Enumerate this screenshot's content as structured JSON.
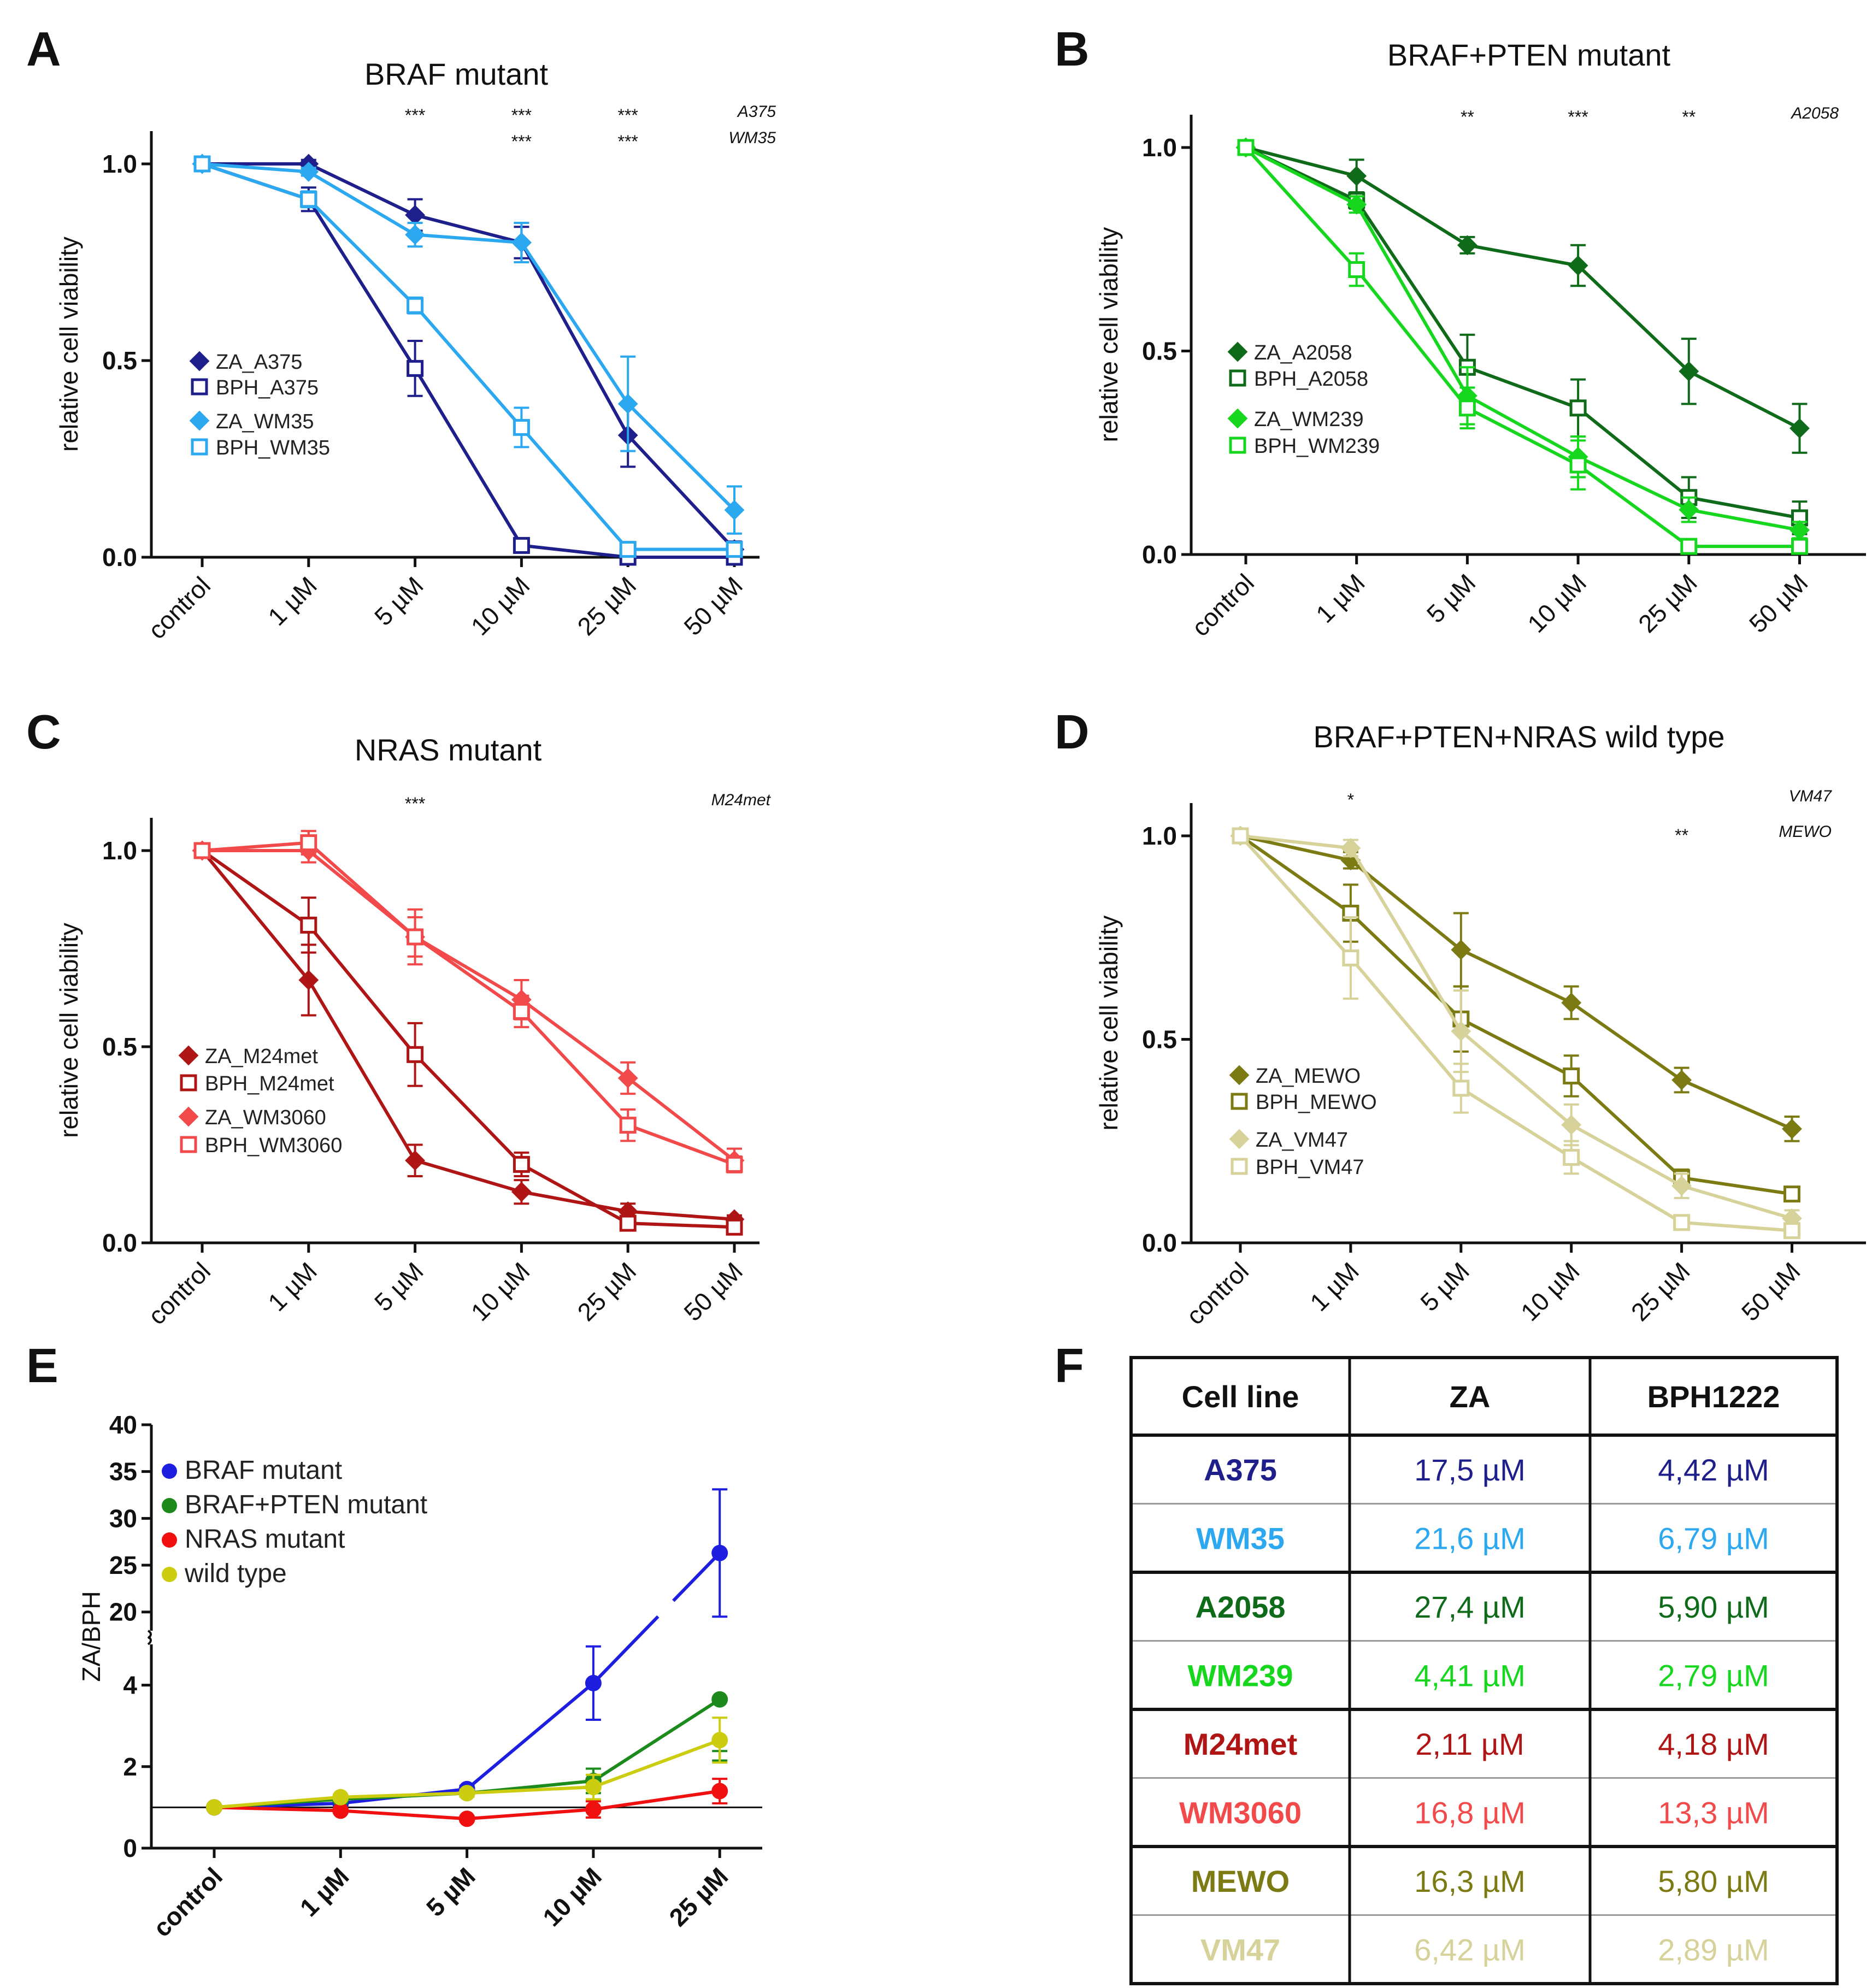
{
  "figure": {
    "panel_letters": [
      "A",
      "B",
      "C",
      "D",
      "E",
      "F"
    ]
  },
  "chart_data": [
    {
      "panel": "A",
      "type": "line",
      "title": "BRAF mutant",
      "ylabel": "relative cell viability",
      "xlabel": "",
      "categories": [
        "control",
        "1 µM",
        "5 µM",
        "10 µM",
        "25 µM",
        "50 µM"
      ],
      "yticks": [
        "0.0",
        "0.5",
        "1.0"
      ],
      "ylim": [
        0,
        1.1
      ],
      "series": [
        {
          "name": "ZA_A375",
          "color": "#1f1f8c",
          "marker": "filled-diamond",
          "values": [
            1.0,
            1.0,
            0.87,
            0.8,
            0.31,
            0.02
          ],
          "errors": [
            0.01,
            0.01,
            0.04,
            0.04,
            0.08,
            0.02
          ]
        },
        {
          "name": "BPH_A375",
          "color": "#1f1f8c",
          "marker": "open-square",
          "values": [
            1.0,
            0.91,
            0.48,
            0.03,
            0.0,
            0.0
          ],
          "errors": [
            0.01,
            0.03,
            0.07,
            0.01,
            0.01,
            0.01
          ]
        },
        {
          "name": "ZA_WM35",
          "color": "#2ba8f0",
          "marker": "filled-diamond",
          "values": [
            1.0,
            0.98,
            0.82,
            0.8,
            0.39,
            0.12
          ],
          "errors": [
            0.01,
            0.01,
            0.03,
            0.05,
            0.12,
            0.06
          ]
        },
        {
          "name": "BPH_WM35",
          "color": "#2ba8f0",
          "marker": "open-square",
          "values": [
            1.0,
            0.91,
            0.64,
            0.33,
            0.02,
            0.02
          ],
          "errors": [
            0.01,
            0.02,
            0.02,
            0.05,
            0.01,
            0.01
          ]
        }
      ],
      "significance": [
        {
          "category": "5 µM",
          "label": "***",
          "row": 0
        },
        {
          "category": "10 µM",
          "label": "***",
          "row": 0
        },
        {
          "category": "25 µM",
          "label": "***",
          "row": 0
        },
        {
          "category": "10 µM",
          "label": "***",
          "row": 1
        },
        {
          "category": "25 µM",
          "label": "***",
          "row": 1
        }
      ],
      "sig_cell_labels": [
        "A375",
        "WM35"
      ]
    },
    {
      "panel": "B",
      "type": "line",
      "title": "BRAF+PTEN mutant",
      "ylabel": "relative cell viability",
      "xlabel": "",
      "categories": [
        "control",
        "1 µM",
        "5 µM",
        "10 µM",
        "25 µM",
        "50 µM"
      ],
      "yticks": [
        "0.0",
        "0.5",
        "1.0"
      ],
      "ylim": [
        0,
        1.1
      ],
      "series": [
        {
          "name": "ZA_A2058",
          "color": "#0f6b1a",
          "marker": "filled-diamond",
          "values": [
            1.0,
            0.93,
            0.76,
            0.71,
            0.45,
            0.31
          ],
          "errors": [
            0.01,
            0.04,
            0.02,
            0.05,
            0.08,
            0.06
          ]
        },
        {
          "name": "BPH_A2058",
          "color": "#0f6b1a",
          "marker": "open-square",
          "values": [
            1.0,
            0.87,
            0.46,
            0.36,
            0.14,
            0.09
          ],
          "errors": [
            0.01,
            0.02,
            0.08,
            0.07,
            0.05,
            0.04
          ]
        },
        {
          "name": "ZA_WM239",
          "color": "#16d61e",
          "marker": "filled-diamond",
          "values": [
            1.0,
            0.86,
            0.39,
            0.24,
            0.11,
            0.06
          ],
          "errors": [
            0.01,
            0.02,
            0.07,
            0.05,
            0.03,
            0.02
          ]
        },
        {
          "name": "BPH_WM239",
          "color": "#16d61e",
          "marker": "open-square",
          "values": [
            1.0,
            0.7,
            0.36,
            0.22,
            0.02,
            0.02
          ],
          "errors": [
            0.01,
            0.04,
            0.05,
            0.06,
            0.01,
            0.01
          ]
        }
      ],
      "significance": [
        {
          "category": "5 µM",
          "label": "**",
          "row": 0
        },
        {
          "category": "10 µM",
          "label": "***",
          "row": 0
        },
        {
          "category": "25 µM",
          "label": "**",
          "row": 0
        }
      ],
      "sig_cell_labels": [
        "A2058"
      ]
    },
    {
      "panel": "C",
      "type": "line",
      "title": "NRAS mutant",
      "ylabel": "relative cell viability",
      "xlabel": "",
      "categories": [
        "control",
        "1 µM",
        "5 µM",
        "10 µM",
        "25 µM",
        "50 µM"
      ],
      "yticks": [
        "0.0",
        "0.5",
        "1.0"
      ],
      "ylim": [
        0,
        1.1
      ],
      "series": [
        {
          "name": "ZA_M24met",
          "color": "#b01515",
          "marker": "filled-diamond",
          "values": [
            1.0,
            0.67,
            0.21,
            0.13,
            0.08,
            0.06
          ],
          "errors": [
            0.01,
            0.09,
            0.04,
            0.03,
            0.02,
            0.01
          ]
        },
        {
          "name": "BPH_M24met",
          "color": "#b01515",
          "marker": "open-square",
          "values": [
            1.0,
            0.81,
            0.48,
            0.2,
            0.05,
            0.04
          ],
          "errors": [
            0.01,
            0.07,
            0.08,
            0.03,
            0.01,
            0.01
          ]
        },
        {
          "name": "ZA_WM3060",
          "color": "#f24a4a",
          "marker": "filled-diamond",
          "values": [
            1.0,
            1.0,
            0.78,
            0.62,
            0.42,
            0.21
          ],
          "errors": [
            0.01,
            0.03,
            0.07,
            0.05,
            0.04,
            0.03
          ]
        },
        {
          "name": "BPH_WM3060",
          "color": "#f24a4a",
          "marker": "open-square",
          "values": [
            1.0,
            1.02,
            0.78,
            0.59,
            0.3,
            0.2
          ],
          "errors": [
            0.01,
            0.03,
            0.05,
            0.04,
            0.04,
            0.02
          ]
        }
      ],
      "significance": [
        {
          "category": "5 µM",
          "label": "***",
          "row": 0
        }
      ],
      "sig_cell_labels": [
        "M24met"
      ]
    },
    {
      "panel": "D",
      "type": "line",
      "title": "BRAF+PTEN+NRAS wild type",
      "ylabel": "relative cell viability",
      "xlabel": "",
      "categories": [
        "control",
        "1 µM",
        "5 µM",
        "10 µM",
        "25 µM",
        "50 µM"
      ],
      "yticks": [
        "0.0",
        "0.5",
        "1.0"
      ],
      "ylim": [
        0,
        1.1
      ],
      "series": [
        {
          "name": "ZA_MEWO",
          "color": "#7c7a12",
          "marker": "filled-diamond",
          "values": [
            1.0,
            0.94,
            0.72,
            0.59,
            0.4,
            0.28
          ],
          "errors": [
            0.01,
            0.02,
            0.09,
            0.04,
            0.03,
            0.03
          ]
        },
        {
          "name": "BPH_MEWO",
          "color": "#7c7a12",
          "marker": "open-square",
          "values": [
            1.0,
            0.81,
            0.55,
            0.41,
            0.16,
            0.12
          ],
          "errors": [
            0.01,
            0.07,
            0.08,
            0.05,
            0.02,
            0.01
          ]
        },
        {
          "name": "ZA_VM47",
          "color": "#d6d29a",
          "marker": "filled-diamond",
          "values": [
            1.0,
            0.97,
            0.52,
            0.29,
            0.14,
            0.06
          ],
          "errors": [
            0.01,
            0.02,
            0.1,
            0.05,
            0.03,
            0.02
          ]
        },
        {
          "name": "BPH_VM47",
          "color": "#d6d29a",
          "marker": "open-square",
          "values": [
            1.0,
            0.7,
            0.38,
            0.21,
            0.05,
            0.03
          ],
          "errors": [
            0.01,
            0.1,
            0.06,
            0.04,
            0.01,
            0.01
          ]
        }
      ],
      "significance": [
        {
          "category": "1 µM",
          "label": "*",
          "row": 0
        },
        {
          "category": "25 µM",
          "label": "**",
          "row": 1
        }
      ],
      "sig_cell_labels": [
        "VM47",
        "MEWO"
      ]
    },
    {
      "panel": "E",
      "type": "line",
      "title": "",
      "ylabel": "ZA/BPH",
      "xlabel": "",
      "categories": [
        "control",
        "1 µM",
        "5 µM",
        "10 µM",
        "25 µM"
      ],
      "broken_axis": {
        "lower_range": [
          0,
          5
        ],
        "upper_range": [
          18,
          40
        ]
      },
      "yticks_lower": [
        "0",
        "2",
        "4"
      ],
      "yticks_upper": [
        "20",
        "25",
        "30",
        "35",
        "40"
      ],
      "reference_line": 1,
      "series": [
        {
          "name": "BRAF mutant",
          "color": "#1e1ee0",
          "values": [
            1.0,
            1.1,
            1.45,
            4.05,
            26.3
          ],
          "errors": [
            0.05,
            0.05,
            0.08,
            0.9,
            6.8
          ]
        },
        {
          "name": "BRAF+PTEN mutant",
          "color": "#1d8a1d",
          "values": [
            1.0,
            1.2,
            1.35,
            1.65,
            3.65
          ],
          "errors": [
            0.05,
            0.06,
            0.08,
            0.3,
            1.5
          ]
        },
        {
          "name": "NRAS mutant",
          "color": "#f01010",
          "values": [
            1.0,
            0.92,
            0.72,
            0.95,
            1.4
          ],
          "errors": [
            0.04,
            0.05,
            0.06,
            0.2,
            0.3
          ]
        },
        {
          "name": "wild type",
          "color": "#cccc10",
          "values": [
            1.0,
            1.25,
            1.35,
            1.5,
            2.65
          ],
          "errors": [
            0.05,
            0.06,
            0.08,
            0.3,
            0.55
          ]
        }
      ]
    },
    {
      "panel": "F",
      "type": "table",
      "headers": [
        "Cell line",
        "ZA",
        "BPH1222"
      ],
      "rows": [
        {
          "cells": [
            "A375",
            "17,5 µM",
            "4,42 µM"
          ],
          "color": "#1f1f8c"
        },
        {
          "cells": [
            "WM35",
            "21,6 µM",
            "6,79 µM"
          ],
          "color": "#2ba8f0"
        },
        {
          "cells": [
            "A2058",
            "27,4 µM",
            "5,90 µM"
          ],
          "color": "#0f6b1a"
        },
        {
          "cells": [
            "WM239",
            "4,41 µM",
            "2,79 µM"
          ],
          "color": "#16d61e"
        },
        {
          "cells": [
            "M24met",
            "2,11 µM",
            "4,18 µM"
          ],
          "color": "#b01515"
        },
        {
          "cells": [
            "WM3060",
            "16,8 µM",
            "13,3 µM"
          ],
          "color": "#f24a4a"
        },
        {
          "cells": [
            "MEWO",
            "16,3 µM",
            "5,80 µM"
          ],
          "color": "#7c7a12"
        },
        {
          "cells": [
            "VM47",
            "6,42 µM",
            "2,89 µM"
          ],
          "color": "#d6d29a"
        }
      ]
    }
  ]
}
